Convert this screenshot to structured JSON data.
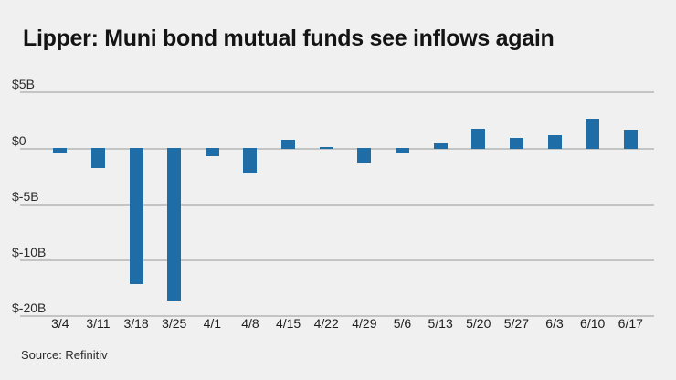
{
  "page": {
    "background_color": "#eff0ef"
  },
  "header": {
    "title": "Lipper: Muni bond mutual funds see inflows again"
  },
  "footer": {
    "source": "Source: Refinitiv"
  },
  "chart_data": {
    "type": "bar",
    "title": "Lipper: Muni bond mutual funds see inflows again",
    "categories": [
      "3/4",
      "3/11",
      "3/18",
      "3/25",
      "4/1",
      "4/8",
      "4/15",
      "4/22",
      "4/29",
      "5/6",
      "5/13",
      "5/20",
      "5/27",
      "6/3",
      "6/10",
      "6/17"
    ],
    "values": [
      -0.4,
      -1.8,
      -12.2,
      -13.7,
      -0.7,
      -2.2,
      0.8,
      0.0,
      -1.3,
      -0.5,
      0.5,
      1.8,
      1.0,
      1.2,
      2.7,
      1.7
    ],
    "values_unit": "billions of dollars",
    "xlabel": "",
    "ylabel": "",
    "ytick_labels": [
      "$5B",
      "$0",
      "$-5B",
      "$-10B",
      "$-20B"
    ],
    "ylim": [
      -20,
      5
    ],
    "grid": true,
    "legend": false,
    "bar_color": "#1f6da6",
    "gridline_color": "#c2c5c4",
    "source": "Source: Refinitiv"
  }
}
